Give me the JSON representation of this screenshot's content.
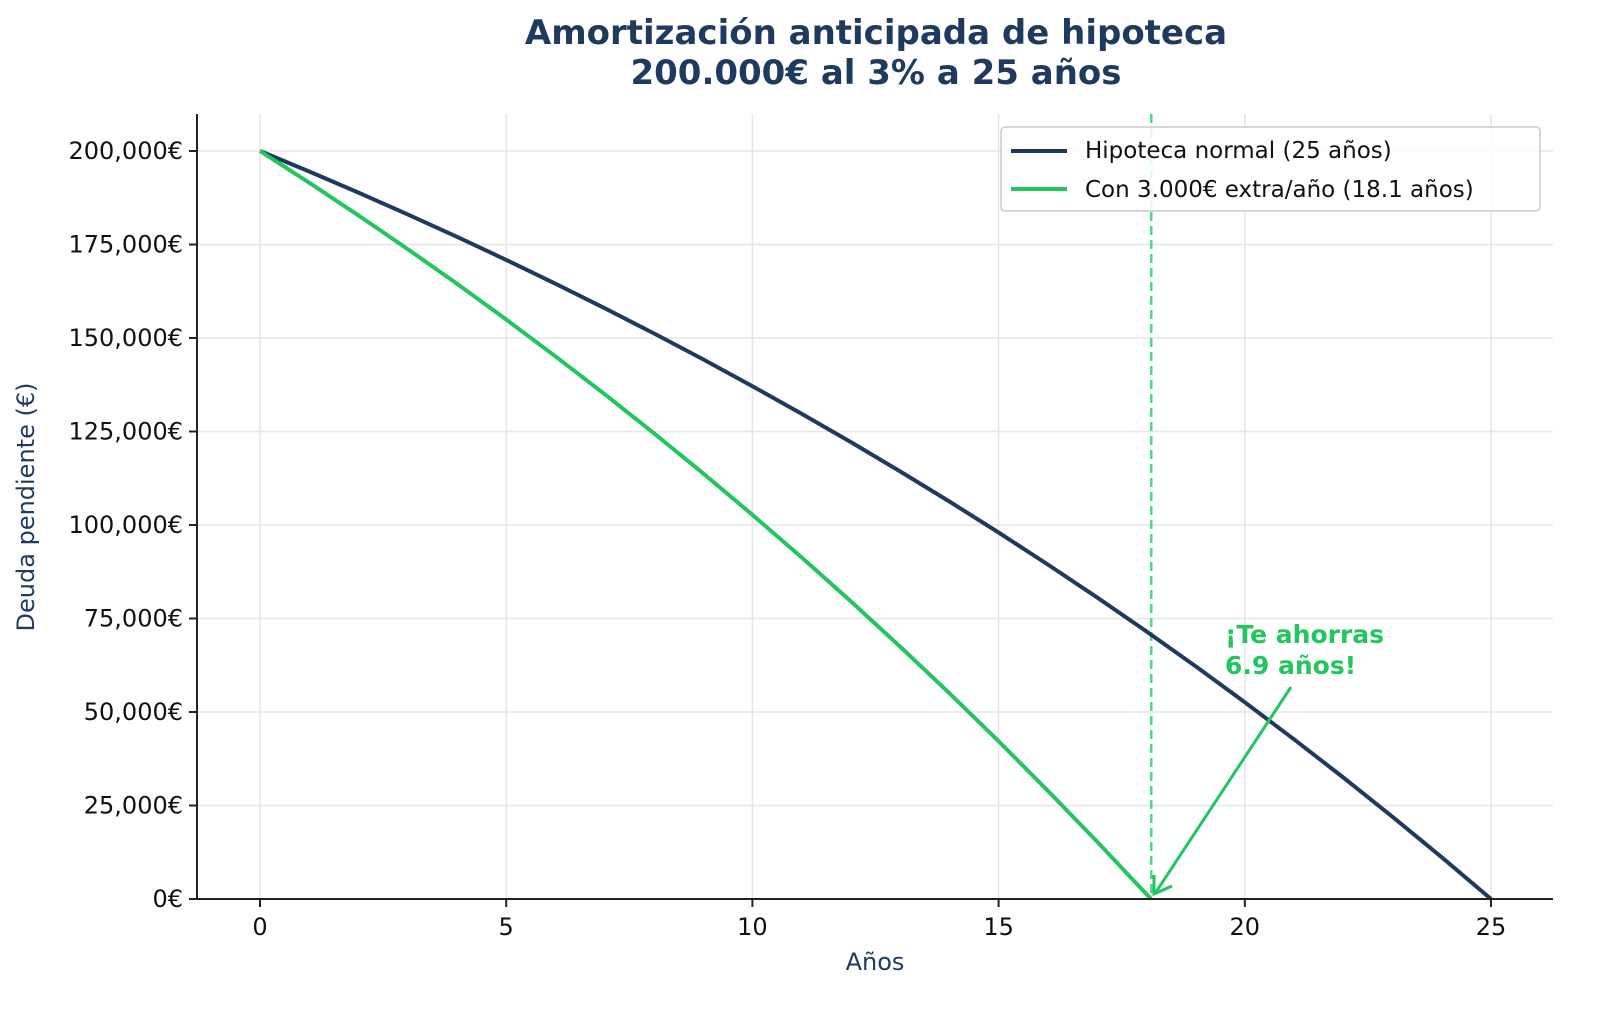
{
  "title": {
    "line1": "Amortización anticipada de hipoteca",
    "line2": "200.000€ al 3% a 25 años"
  },
  "axes": {
    "xlabel": "Años",
    "ylabel": "Deuda pendiente (€)",
    "xticks": [
      "0",
      "5",
      "10",
      "15",
      "20",
      "25"
    ],
    "yticks": [
      "0€",
      "25,000€",
      "50,000€",
      "75,000€",
      "100,000€",
      "125,000€",
      "150,000€",
      "175,000€",
      "200,000€"
    ]
  },
  "legend": {
    "items": [
      {
        "label": "Hipoteca normal (25 años)",
        "color": "#1f3a5f"
      },
      {
        "label": "Con 3.000€ extra/año (18.1 años)",
        "color": "#22c55e"
      }
    ]
  },
  "annotation": {
    "line1": "¡Te ahorras",
    "line2": "6.9 años!",
    "color": "#22c55e"
  },
  "colors": {
    "normal": "#1f3a5f",
    "extra": "#22c55e",
    "vline": "#4ade80",
    "grid": "#e6e6e6",
    "title": "#1f3a5f"
  },
  "chart_data": {
    "type": "line",
    "title": "Amortización anticipada de hipoteca\n200.000€ al 3% a 25 años",
    "xlabel": "Años",
    "ylabel": "Deuda pendiente (€)",
    "xlim": [
      -1.25,
      26.25
    ],
    "ylim": [
      0,
      210000
    ],
    "grid": true,
    "legend_position": "upper right",
    "series": [
      {
        "name": "Hipoteca normal (25 años)",
        "color": "#1f3a5f",
        "x": [
          0,
          1,
          2,
          3,
          4,
          5,
          6,
          7,
          8,
          9,
          10,
          11,
          12,
          13,
          14,
          15,
          16,
          17,
          18,
          19,
          20,
          21,
          22,
          23,
          24,
          25
        ],
        "values": [
          200000,
          194515,
          188865,
          183046,
          177053,
          170880,
          164521,
          157972,
          151226,
          144278,
          137121,
          129749,
          122156,
          114336,
          106280,
          97983,
          89437,
          80634,
          71568,
          62230,
          52611,
          42703,
          32499,
          21988,
          11161,
          0
        ]
      },
      {
        "name": "Con 3.000€ extra/año (18.1 años)",
        "color": "#22c55e",
        "x": [
          0,
          1,
          2,
          3,
          4,
          5,
          6,
          7,
          8,
          9,
          10,
          11,
          12,
          13,
          14,
          15,
          16,
          17,
          18,
          18.1
        ],
        "values": [
          200000,
          191515,
          182775,
          173774,
          164502,
          154952,
          145116,
          134984,
          124549,
          113800,
          102729,
          91326,
          79580,
          67483,
          55022,
          42188,
          28969,
          15353,
          1329,
          0
        ]
      }
    ],
    "annotations": [
      {
        "type": "vline",
        "x": 18.1,
        "style": "dashed",
        "color": "#4ade80"
      },
      {
        "type": "text_arrow",
        "text": "¡Te ahorras\n6.9 años!",
        "text_xy": [
          19.6,
          62000
        ],
        "arrow_to": [
          18.1,
          0
        ],
        "color": "#22c55e"
      }
    ]
  }
}
